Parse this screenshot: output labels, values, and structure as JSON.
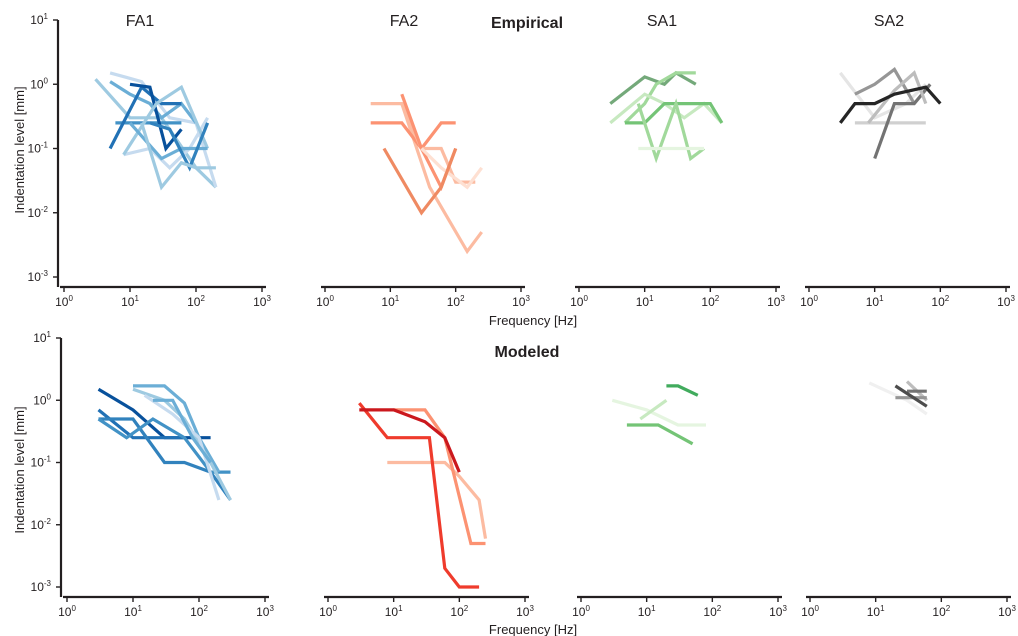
{
  "figure": {
    "row_titles": [
      "Empirical",
      "Modeled"
    ],
    "x_label": "Frequency [Hz]",
    "y_label": "Indentation level [mm]",
    "x_ticks": [
      {
        "base": "10",
        "exp": "0"
      },
      {
        "base": "10",
        "exp": "1"
      },
      {
        "base": "10",
        "exp": "2"
      },
      {
        "base": "10",
        "exp": "3"
      }
    ],
    "y_ticks": [
      {
        "base": "10",
        "exp": "1"
      },
      {
        "base": "10",
        "exp": "0"
      },
      {
        "base": "10",
        "exp": "-1"
      },
      {
        "base": "10",
        "exp": "-2"
      },
      {
        "base": "10",
        "exp": "-3"
      }
    ]
  },
  "chart_data": [
    {
      "type": "line",
      "row": "Empirical",
      "title": "FA1",
      "xscale": "log",
      "yscale": "log",
      "xlim": [
        1,
        1000
      ],
      "ylim": [
        0.001,
        10
      ],
      "xlabel": "",
      "ylabel": "Indentation level [mm]",
      "series": [
        {
          "color": "#9ecae1",
          "x": [
            3,
            10,
            30,
            100,
            200
          ],
          "y": [
            1.2,
            0.3,
            0.3,
            0.05,
            0.025
          ]
        },
        {
          "color": "#c6dbef",
          "x": [
            5,
            15,
            40,
            100,
            200
          ],
          "y": [
            1.5,
            1.1,
            0.3,
            0.25,
            0.025
          ]
        },
        {
          "color": "#6baed6",
          "x": [
            5,
            10,
            20,
            30,
            60,
            100
          ],
          "y": [
            1.1,
            0.7,
            0.5,
            0.3,
            0.5,
            0.25
          ]
        },
        {
          "color": "#4292c6",
          "x": [
            6,
            20,
            60
          ],
          "y": [
            0.25,
            0.25,
            0.25
          ]
        },
        {
          "color": "#2171b5",
          "x": [
            5,
            15,
            30,
            60
          ],
          "y": [
            0.1,
            0.9,
            0.5,
            0.5
          ]
        },
        {
          "color": "#08519c",
          "x": [
            10,
            20,
            35,
            60
          ],
          "y": [
            1.0,
            0.9,
            0.1,
            0.2
          ]
        },
        {
          "color": "#c6dbef",
          "x": [
            8,
            20,
            40,
            80,
            150
          ],
          "y": [
            0.08,
            0.1,
            0.05,
            0.1,
            0.3
          ]
        },
        {
          "color": "#9ecae1",
          "x": [
            8,
            25,
            60,
            150
          ],
          "y": [
            0.08,
            0.5,
            0.9,
            0.1
          ]
        },
        {
          "color": "#6baed6",
          "x": [
            10,
            30,
            60,
            150
          ],
          "y": [
            0.25,
            0.07,
            0.1,
            0.1
          ]
        },
        {
          "color": "#3182bd",
          "x": [
            20,
            40,
            80,
            150
          ],
          "y": [
            0.25,
            0.2,
            0.05,
            0.25
          ]
        },
        {
          "color": "#9ecae1",
          "x": [
            15,
            30,
            60,
            100,
            200
          ],
          "y": [
            0.25,
            0.025,
            0.06,
            0.05,
            0.05
          ]
        }
      ]
    },
    {
      "type": "line",
      "row": "Empirical",
      "title": "FA2",
      "xscale": "log",
      "yscale": "log",
      "xlim": [
        1,
        1000
      ],
      "ylim": [
        0.001,
        10
      ],
      "series": [
        {
          "color": "#fcbba1",
          "x": [
            5,
            15,
            40,
            150,
            250
          ],
          "y": [
            0.5,
            0.5,
            0.025,
            0.0025,
            0.005
          ]
        },
        {
          "color": "#fc9272",
          "x": [
            5,
            15,
            30,
            60,
            100
          ],
          "y": [
            0.25,
            0.25,
            0.1,
            0.25,
            0.25
          ]
        },
        {
          "color": "#fcbba1",
          "x": [
            15,
            30,
            60,
            100,
            200
          ],
          "y": [
            0.5,
            0.1,
            0.1,
            0.03,
            0.03
          ]
        },
        {
          "color": "#fc9272",
          "x": [
            15,
            30,
            60,
            100
          ],
          "y": [
            0.7,
            0.1,
            0.025,
            0.1
          ]
        },
        {
          "color": "#fee0d2",
          "x": [
            30,
            60,
            150,
            250
          ],
          "y": [
            0.1,
            0.05,
            0.025,
            0.05
          ]
        },
        {
          "color": "#ef8a62",
          "x": [
            8,
            30,
            60,
            100
          ],
          "y": [
            0.1,
            0.01,
            0.025,
            0.1
          ]
        }
      ]
    },
    {
      "type": "line",
      "row": "Empirical",
      "title": "SA1",
      "xscale": "log",
      "yscale": "log",
      "xlim": [
        1,
        1000
      ],
      "ylim": [
        0.001,
        10
      ],
      "series": [
        {
          "color": "#74a97a",
          "x": [
            3,
            10,
            20,
            30,
            60
          ],
          "y": [
            0.5,
            1.3,
            1.0,
            1.5,
            1.0
          ]
        },
        {
          "color": "#a1d99b",
          "x": [
            5,
            10,
            15,
            30,
            60
          ],
          "y": [
            0.25,
            0.5,
            1.0,
            1.5,
            1.5
          ]
        },
        {
          "color": "#c7e9c0",
          "x": [
            3,
            10,
            20,
            40,
            80,
            150
          ],
          "y": [
            0.25,
            0.7,
            0.5,
            0.3,
            0.5,
            0.25
          ]
        },
        {
          "color": "#74c476",
          "x": [
            5,
            10,
            20,
            60,
            100,
            150
          ],
          "y": [
            0.25,
            0.25,
            0.5,
            0.5,
            0.5,
            0.25
          ]
        },
        {
          "color": "#a1d99b",
          "x": [
            8,
            15,
            30,
            50,
            80
          ],
          "y": [
            0.5,
            0.07,
            0.5,
            0.07,
            0.1
          ]
        },
        {
          "color": "#e5f5e0",
          "x": [
            8,
            30,
            80
          ],
          "y": [
            0.1,
            0.1,
            0.1
          ]
        }
      ]
    },
    {
      "type": "line",
      "row": "Empirical",
      "title": "SA2",
      "xscale": "log",
      "yscale": "log",
      "xlim": [
        1,
        1000
      ],
      "ylim": [
        0.001,
        10
      ],
      "series": [
        {
          "color": "#e5e5e5",
          "x": [
            3,
            10,
            30,
            60
          ],
          "y": [
            1.5,
            0.3,
            0.5,
            1.0
          ]
        },
        {
          "color": "#d0d0d0",
          "x": [
            5,
            10,
            20,
            60
          ],
          "y": [
            0.25,
            0.25,
            0.25,
            0.25
          ]
        },
        {
          "color": "#969696",
          "x": [
            5,
            10,
            20,
            40
          ],
          "y": [
            0.7,
            1.0,
            1.7,
            0.5
          ]
        },
        {
          "color": "#737373",
          "x": [
            10,
            20,
            40,
            70
          ],
          "y": [
            0.07,
            0.5,
            0.5,
            1.0
          ]
        },
        {
          "color": "#bdbdbd",
          "x": [
            8,
            20,
            40,
            60
          ],
          "y": [
            0.25,
            0.8,
            1.5,
            0.5
          ]
        },
        {
          "color": "#252525",
          "x": [
            3,
            5,
            10,
            20,
            60,
            100
          ],
          "y": [
            0.25,
            0.5,
            0.5,
            0.7,
            0.9,
            0.5
          ]
        }
      ]
    },
    {
      "type": "line",
      "row": "Modeled",
      "title": "",
      "xscale": "log",
      "yscale": "log",
      "xlim": [
        1,
        1000
      ],
      "ylim": [
        0.001,
        10
      ],
      "ylabel": "Indentation level [mm]",
      "series": [
        {
          "color": "#08519c",
          "x": [
            3,
            10,
            30,
            80,
            150
          ],
          "y": [
            1.5,
            0.7,
            0.25,
            0.25,
            0.25
          ]
        },
        {
          "color": "#2171b5",
          "x": [
            3,
            10,
            20,
            60
          ],
          "y": [
            0.7,
            0.25,
            0.25,
            0.25
          ]
        },
        {
          "color": "#3182bd",
          "x": [
            3,
            10,
            30,
            60,
            150,
            300
          ],
          "y": [
            0.5,
            0.5,
            0.1,
            0.1,
            0.07,
            0.025
          ]
        },
        {
          "color": "#4292c6",
          "x": [
            3,
            8,
            20,
            60,
            150,
            300
          ],
          "y": [
            0.5,
            0.25,
            0.5,
            0.25,
            0.07,
            0.07
          ]
        },
        {
          "color": "#6baed6",
          "x": [
            10,
            30,
            60,
            100,
            200
          ],
          "y": [
            1.7,
            1.7,
            0.9,
            0.25,
            0.07
          ]
        },
        {
          "color": "#9ecae1",
          "x": [
            10,
            30,
            60,
            150,
            300
          ],
          "y": [
            1.5,
            1.0,
            0.5,
            0.1,
            0.025
          ]
        },
        {
          "color": "#c6dbef",
          "x": [
            15,
            40,
            100,
            200
          ],
          "y": [
            1.2,
            0.6,
            0.25,
            0.025
          ]
        },
        {
          "color": "#6baed6",
          "x": [
            20,
            40,
            80,
            150
          ],
          "y": [
            1.0,
            1.0,
            0.25,
            0.1
          ]
        }
      ]
    },
    {
      "type": "line",
      "row": "Modeled",
      "title": "",
      "xscale": "log",
      "yscale": "log",
      "xlim": [
        1,
        1000
      ],
      "ylim": [
        0.001,
        10
      ],
      "series": [
        {
          "color": "#fcbba1",
          "x": [
            8,
            30,
            60,
            100,
            200,
            250
          ],
          "y": [
            0.1,
            0.1,
            0.1,
            0.06,
            0.025,
            0.006
          ]
        },
        {
          "color": "#fc9272",
          "x": [
            10,
            30,
            60,
            150,
            250
          ],
          "y": [
            0.7,
            0.7,
            0.25,
            0.005,
            0.005
          ]
        },
        {
          "color": "#ef3b2c",
          "x": [
            3,
            8,
            20,
            35,
            60,
            100,
            200
          ],
          "y": [
            0.9,
            0.25,
            0.25,
            0.25,
            0.002,
            0.001,
            0.001
          ]
        },
        {
          "color": "#cb181d",
          "x": [
            3,
            10,
            30,
            60,
            100
          ],
          "y": [
            0.7,
            0.7,
            0.45,
            0.25,
            0.07
          ]
        }
      ]
    },
    {
      "type": "line",
      "row": "Modeled",
      "title": "",
      "xscale": "log",
      "yscale": "log",
      "xlim": [
        1,
        1000
      ],
      "ylim": [
        0.001,
        10
      ],
      "series": [
        {
          "color": "#e5f5e0",
          "x": [
            3,
            10,
            30,
            80
          ],
          "y": [
            1.0,
            0.7,
            0.4,
            0.4
          ]
        },
        {
          "color": "#c7e9c0",
          "x": [
            8,
            20
          ],
          "y": [
            0.5,
            1.0
          ]
        },
        {
          "color": "#74c476",
          "x": [
            5,
            15,
            50
          ],
          "y": [
            0.4,
            0.4,
            0.2
          ]
        },
        {
          "color": "#41ab5d",
          "x": [
            20,
            30,
            60
          ],
          "y": [
            1.7,
            1.7,
            1.2
          ]
        }
      ]
    },
    {
      "type": "line",
      "row": "Modeled",
      "title": "",
      "xscale": "log",
      "yscale": "log",
      "xlim": [
        1,
        1000
      ],
      "ylim": [
        0.001,
        10
      ],
      "series": [
        {
          "color": "#f0f0f0",
          "x": [
            8,
            30,
            60
          ],
          "y": [
            1.9,
            1.0,
            0.6
          ]
        },
        {
          "color": "#bdbdbd",
          "x": [
            30,
            60
          ],
          "y": [
            2.0,
            1.0
          ]
        },
        {
          "color": "#969696",
          "x": [
            20,
            60
          ],
          "y": [
            1.1,
            1.1
          ]
        },
        {
          "color": "#737373",
          "x": [
            30,
            60
          ],
          "y": [
            1.4,
            1.4
          ]
        },
        {
          "color": "#4d4d4d",
          "x": [
            20,
            60
          ],
          "y": [
            1.7,
            0.8
          ]
        }
      ]
    }
  ]
}
